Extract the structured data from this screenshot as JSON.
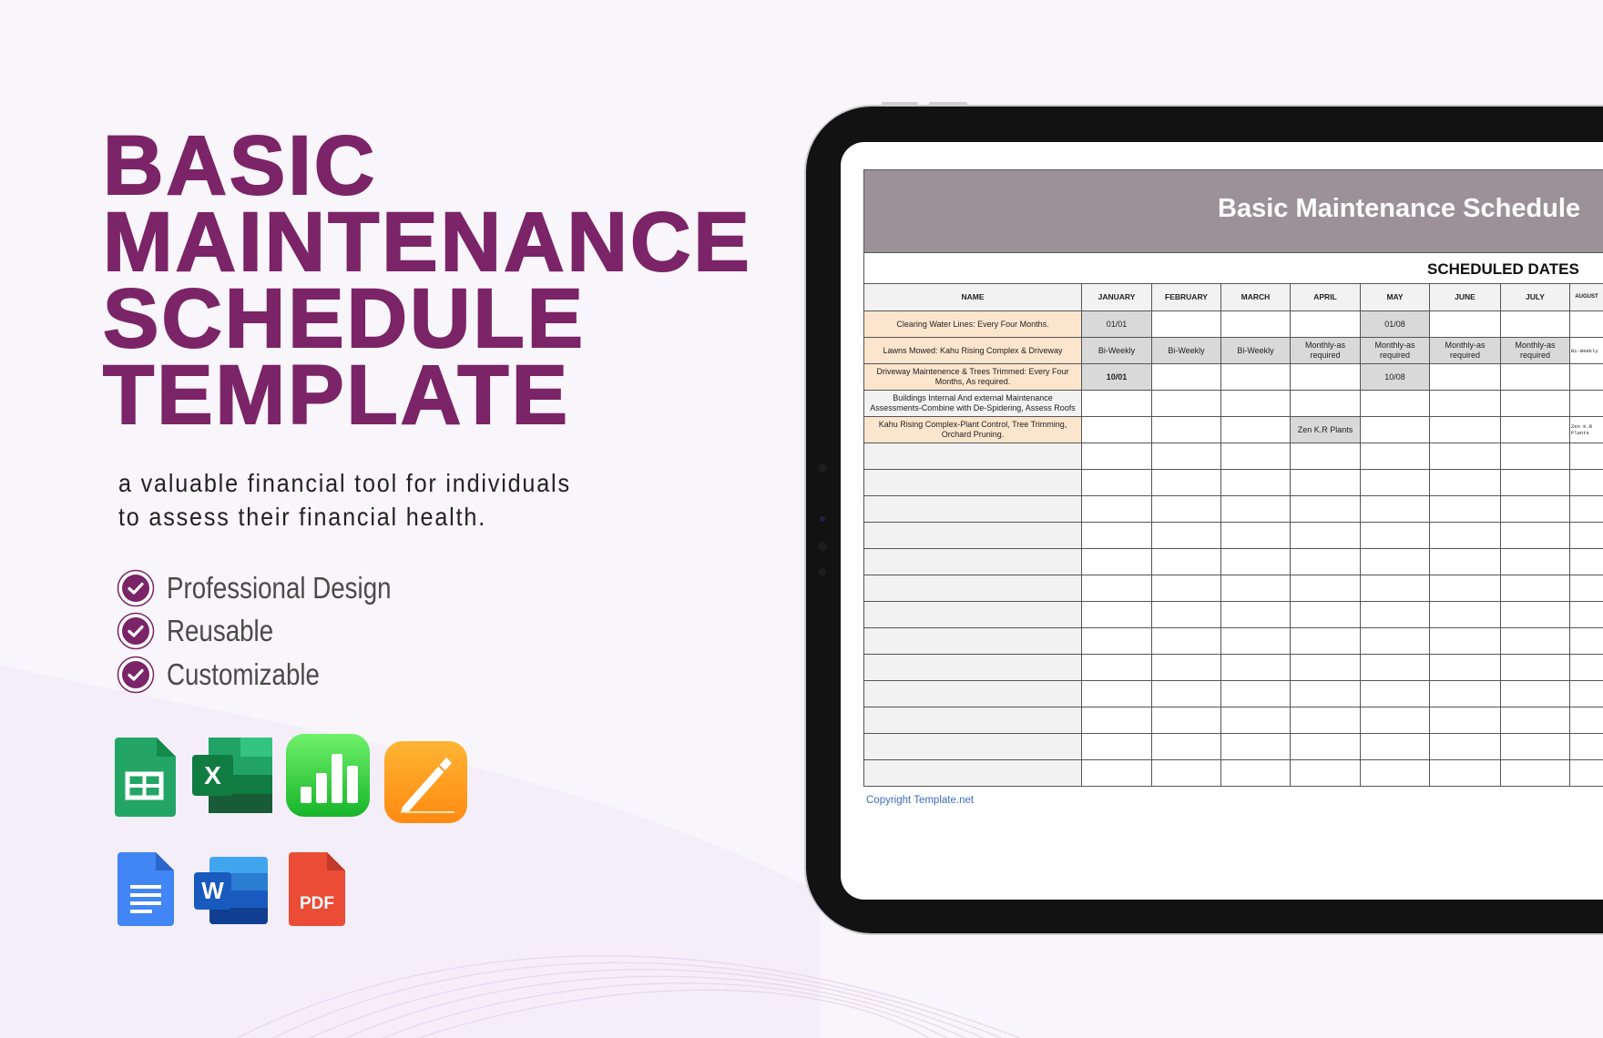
{
  "hero": {
    "title_lines": [
      "BASIC",
      "MAINTENANCE",
      "SCHEDULE",
      "TEMPLATE"
    ],
    "subtitle_lines": [
      "a valuable financial tool for individuals",
      "to assess their financial health."
    ],
    "features": [
      "Professional Design",
      "Reusable",
      "Customizable"
    ],
    "accent_color": "#7b2468"
  },
  "formats": {
    "row1": [
      "google-sheets-icon",
      "excel-icon",
      "numbers-icon",
      "pages-icon"
    ],
    "row2": [
      "google-docs-icon",
      "word-icon",
      "pdf-icon"
    ]
  },
  "sheet": {
    "title": "Basic Maintenance Schedule",
    "scheduled_dates_label": "SCHEDULED DATES",
    "columns": [
      "NAME",
      "JANUARY",
      "FEBRUARY",
      "MARCH",
      "APRIL",
      "MAY",
      "JUNE",
      "JULY",
      "AUGUST"
    ],
    "rows": [
      {
        "name": "Clearing Water Lines: Every Four Months.",
        "highlight": true,
        "cells": [
          "01/01",
          "",
          "",
          "",
          "01/08",
          "",
          "",
          ""
        ],
        "shaded": [
          0,
          4
        ]
      },
      {
        "name": "Lawns Mowed: Kahu Rising Complex & Driveway",
        "highlight": true,
        "cells": [
          "Bi-Weekly",
          "Bi-Weekly",
          "Bi-Weekly",
          "Monthly-as required",
          "Monthly-as required",
          "Monthly-as required",
          "Monthly-as required",
          "Bi-Weekly"
        ],
        "shaded": [
          0,
          1,
          2,
          3,
          4,
          5,
          6
        ]
      },
      {
        "name": "Driveway Maintenence & Trees Trimmed: Every Four Months, As required.",
        "highlight": true,
        "cells": [
          "10/01",
          "",
          "",
          "",
          "10/08",
          "",
          "",
          ""
        ],
        "shaded": [
          0,
          4
        ]
      },
      {
        "name": "Buildings Internal And external Maintenance Assessments-Combine with De-Spidering, Assess Roofs",
        "highlight": false,
        "cells": [
          "",
          "",
          "",
          "",
          "",
          "",
          "",
          ""
        ],
        "shaded": []
      },
      {
        "name": "Kahu Rising Complex-Plant Control, Tree Trimming, Orchard Pruning.",
        "highlight": true,
        "cells": [
          "",
          "",
          "",
          "Zen K.R Plants",
          "",
          "",
          "",
          "Zen K.R Plants"
        ],
        "shaded": [
          3
        ]
      }
    ],
    "empty_rows": 13,
    "copyright": "Copyright Template.net",
    "header_color": "#9d9199",
    "highlight_color": "#fce5cd"
  }
}
